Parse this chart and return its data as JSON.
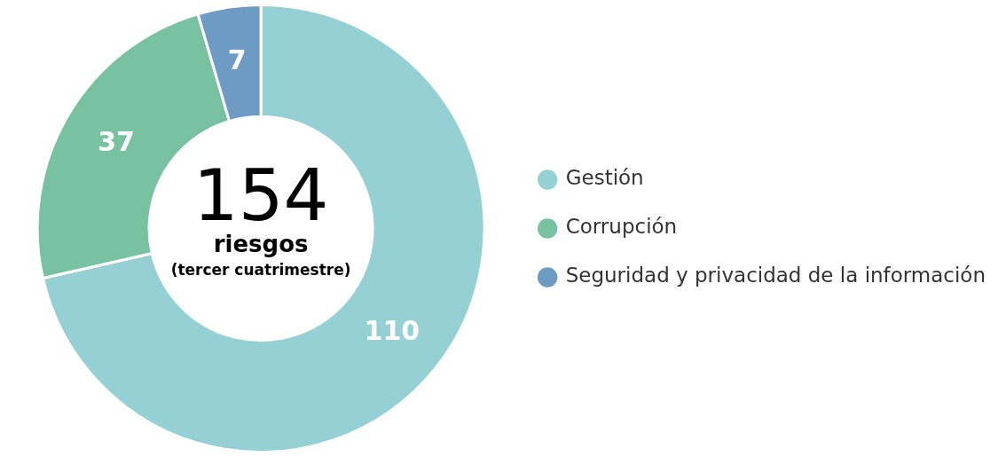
{
  "chart_data": {
    "type": "donut",
    "categories": [
      "Gestión",
      "Corrupción",
      "Seguridad y privacidad de la información"
    ],
    "values": [
      110,
      37,
      7
    ],
    "colors": [
      "#95d1d4",
      "#78c1a1",
      "#6e9bc3"
    ],
    "data_labels": true,
    "legend": "right",
    "annotations": [
      "154",
      "riesgos",
      "(tercer cuatrimestre)"
    ]
  }
}
